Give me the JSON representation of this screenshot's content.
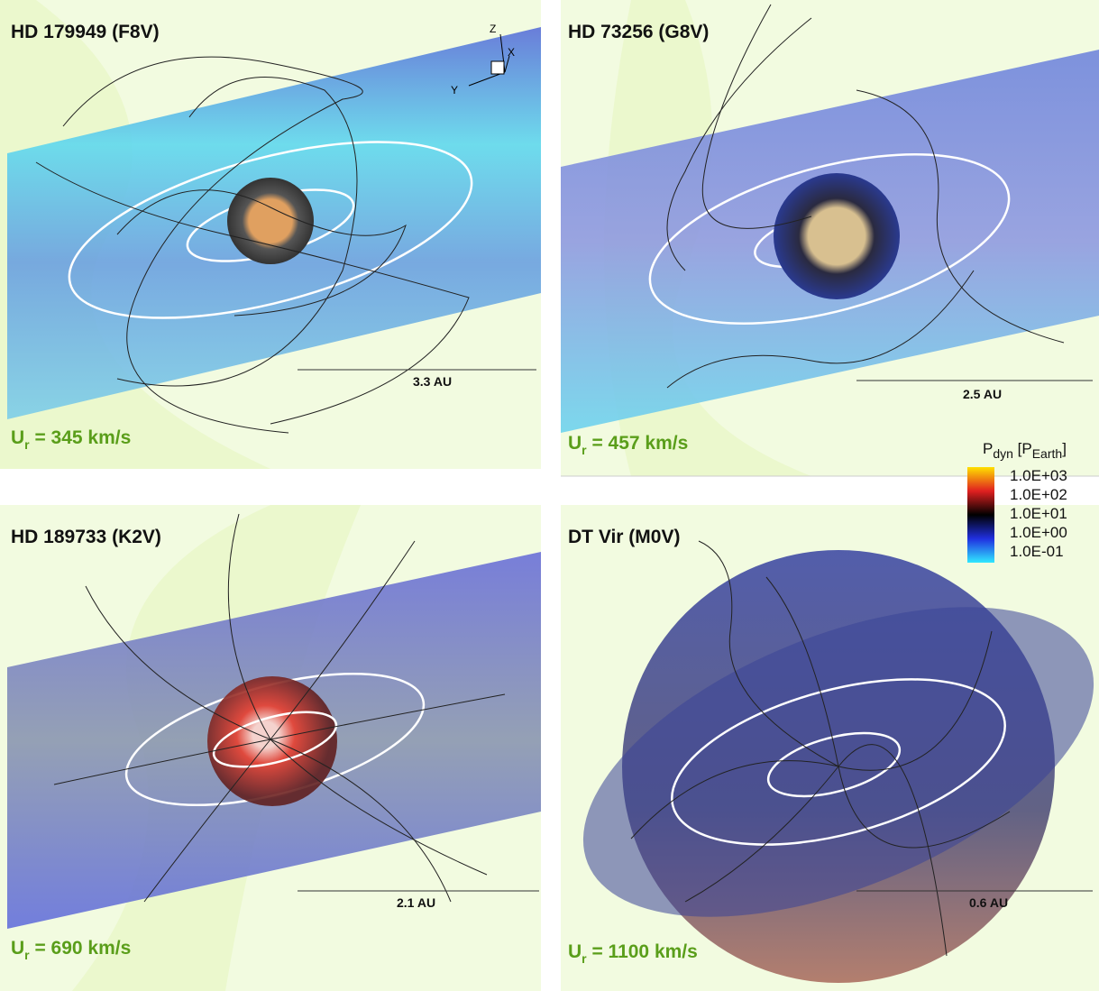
{
  "panels": [
    {
      "title": "HD 179949 (F8V)",
      "speed": {
        "symbol": "U",
        "subscript": "r",
        "text": " = 345 km/s"
      },
      "scale": "3.3 AU",
      "axes": {
        "z": "Z",
        "x": "X",
        "y": "Y"
      }
    },
    {
      "title": "HD 73256 (G8V)",
      "speed": {
        "symbol": "U",
        "subscript": "r",
        "text": " = 457 km/s"
      },
      "scale": "2.5 AU"
    },
    {
      "title": "HD 189733 (K2V)",
      "speed": {
        "symbol": "U",
        "subscript": "r",
        "text": " = 690 km/s"
      },
      "scale": "2.1 AU"
    },
    {
      "title": "DT Vir (M0V)",
      "speed": {
        "symbol": "U",
        "subscript": "r",
        "text": " = 1100 km/s"
      },
      "scale": "0.6 AU"
    }
  ],
  "colorbar": {
    "symbol": "P",
    "subscript": "dyn",
    "unit_open": " [P",
    "unit_subscript": "Earth",
    "unit_close": "]",
    "labels": [
      "1.0E+03",
      "1.0E+02",
      "1.0E+01",
      "1.0E+00",
      "1.0E-01"
    ]
  }
}
